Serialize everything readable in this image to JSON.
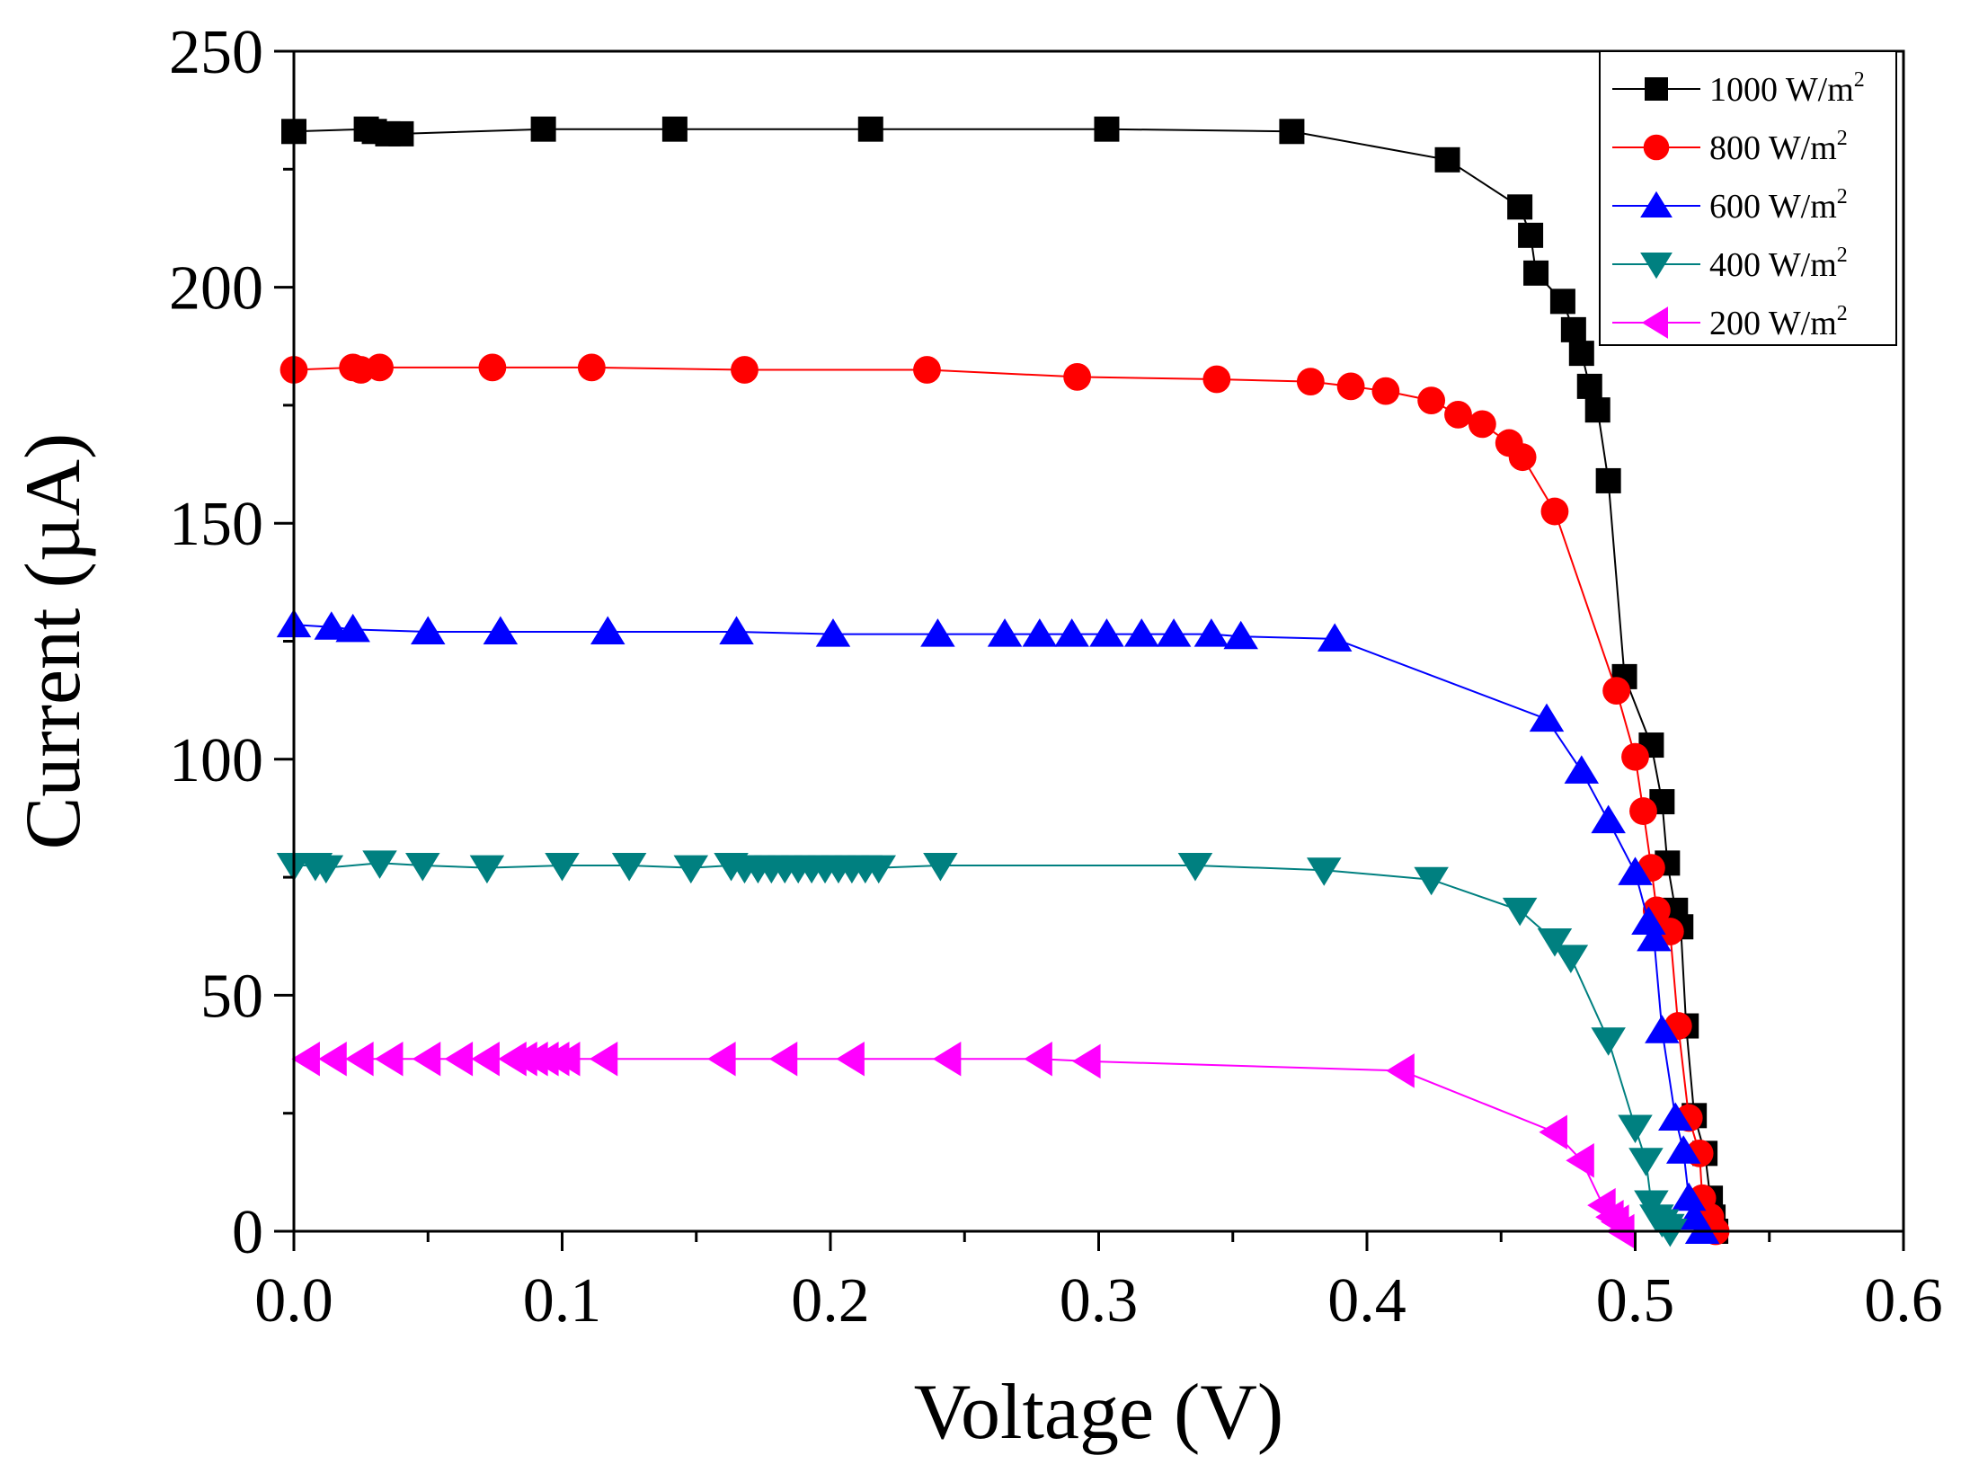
{
  "chart_data": {
    "type": "line",
    "xlabel": "Voltage (V)",
    "ylabel": "Current (µA)",
    "xlim": [
      0.0,
      0.6
    ],
    "ylim": [
      0,
      250
    ],
    "x_ticks": [
      "0.0",
      "0.1",
      "0.2",
      "0.3",
      "0.4",
      "0.5",
      "0.6"
    ],
    "y_ticks": [
      "0",
      "50",
      "100",
      "150",
      "200",
      "250"
    ],
    "grid": false,
    "legend_position": "top-right",
    "series": [
      {
        "name": "1000 W/m",
        "name_sup": "2",
        "color": "#000000",
        "marker": "square",
        "x": [
          0.0,
          0.027,
          0.03,
          0.035,
          0.04,
          0.093,
          0.142,
          0.215,
          0.303,
          0.372,
          0.43,
          0.457,
          0.461,
          0.463,
          0.473,
          0.477,
          0.48,
          0.483,
          0.486,
          0.49,
          0.496,
          0.506,
          0.51,
          0.512,
          0.515,
          0.517,
          0.519,
          0.522,
          0.526,
          0.528,
          0.529,
          0.53
        ],
        "y": [
          233,
          233.5,
          233,
          232.5,
          232.5,
          233.5,
          233.5,
          233.5,
          233.5,
          233,
          227,
          217,
          211,
          203,
          197,
          191,
          186,
          179,
          174,
          159,
          117.5,
          103,
          91,
          78,
          68,
          64.5,
          43.5,
          24.5,
          16.5,
          7,
          3,
          0
        ]
      },
      {
        "name": "800 W/m",
        "name_sup": "2",
        "color": "#ff0000",
        "marker": "circle",
        "x": [
          0.0,
          0.022,
          0.025,
          0.032,
          0.074,
          0.111,
          0.168,
          0.236,
          0.292,
          0.344,
          0.379,
          0.394,
          0.407,
          0.424,
          0.434,
          0.443,
          0.453,
          0.458,
          0.47,
          0.493,
          0.5,
          0.503,
          0.506,
          0.508,
          0.51,
          0.513,
          0.516,
          0.52,
          0.524,
          0.525,
          0.528,
          0.53
        ],
        "y": [
          182.5,
          183,
          182.5,
          183,
          183,
          183,
          182.5,
          182.5,
          181,
          180.5,
          180,
          179,
          178,
          176,
          173,
          171,
          167,
          164,
          152.5,
          114.5,
          100.5,
          89,
          77,
          68,
          63.5,
          63.5,
          43.5,
          24,
          16.5,
          7,
          3,
          0
        ]
      },
      {
        "name": "600 W/m",
        "name_sup": "2",
        "color": "#0000ff",
        "marker": "triangle-up",
        "x": [
          0.0,
          0.014,
          0.022,
          0.05,
          0.077,
          0.117,
          0.165,
          0.201,
          0.24,
          0.265,
          0.278,
          0.29,
          0.303,
          0.316,
          0.328,
          0.342,
          0.353,
          0.388,
          0.467,
          0.48,
          0.49,
          0.5,
          0.505,
          0.507,
          0.51,
          0.515,
          0.518,
          0.52,
          0.522,
          0.525
        ],
        "y": [
          128.5,
          128,
          127.5,
          127,
          127,
          127,
          127,
          126.5,
          126.5,
          126.5,
          126.5,
          126.5,
          126.5,
          126.5,
          126.5,
          126.5,
          126,
          125.5,
          108.5,
          97.5,
          87,
          76,
          65.5,
          62,
          42.5,
          24,
          17,
          7,
          3,
          0
        ]
      },
      {
        "name": "400 W/m",
        "name_sup": "2",
        "color": "#008080",
        "marker": "triangle-down",
        "x": [
          0.0,
          0.008,
          0.012,
          0.032,
          0.048,
          0.072,
          0.1,
          0.125,
          0.148,
          0.163,
          0.168,
          0.173,
          0.178,
          0.183,
          0.188,
          0.193,
          0.198,
          0.203,
          0.208,
          0.213,
          0.218,
          0.241,
          0.336,
          0.384,
          0.424,
          0.457,
          0.47,
          0.476,
          0.49,
          0.5,
          0.504,
          0.506,
          0.508,
          0.51,
          0.512,
          0.513
        ],
        "y": [
          77.5,
          77.5,
          77,
          78,
          77.5,
          77,
          77.5,
          77.5,
          77,
          77.5,
          77,
          77,
          77,
          77,
          77,
          77,
          77,
          77,
          77,
          77,
          77,
          77.5,
          77.5,
          76.5,
          74.5,
          68,
          61.5,
          58,
          40.5,
          22,
          15,
          6,
          3,
          2,
          1,
          0
        ]
      },
      {
        "name": "200 W/m",
        "name_sup": "2",
        "color": "#ff00ff",
        "marker": "triangle-left",
        "x": [
          0.005,
          0.015,
          0.025,
          0.036,
          0.05,
          0.062,
          0.072,
          0.082,
          0.086,
          0.09,
          0.094,
          0.098,
          0.102,
          0.116,
          0.16,
          0.183,
          0.208,
          0.244,
          0.278,
          0.296,
          0.413,
          0.47,
          0.48,
          0.488,
          0.491,
          0.493,
          0.495
        ],
        "y": [
          36.5,
          36.5,
          36.5,
          36.5,
          36.5,
          36.5,
          36.5,
          36.5,
          36.5,
          36.5,
          36.5,
          36.5,
          36.5,
          36.5,
          36.5,
          36.5,
          36.5,
          36.5,
          36.5,
          36,
          34,
          21,
          15,
          5.5,
          3,
          2,
          0
        ]
      }
    ]
  }
}
